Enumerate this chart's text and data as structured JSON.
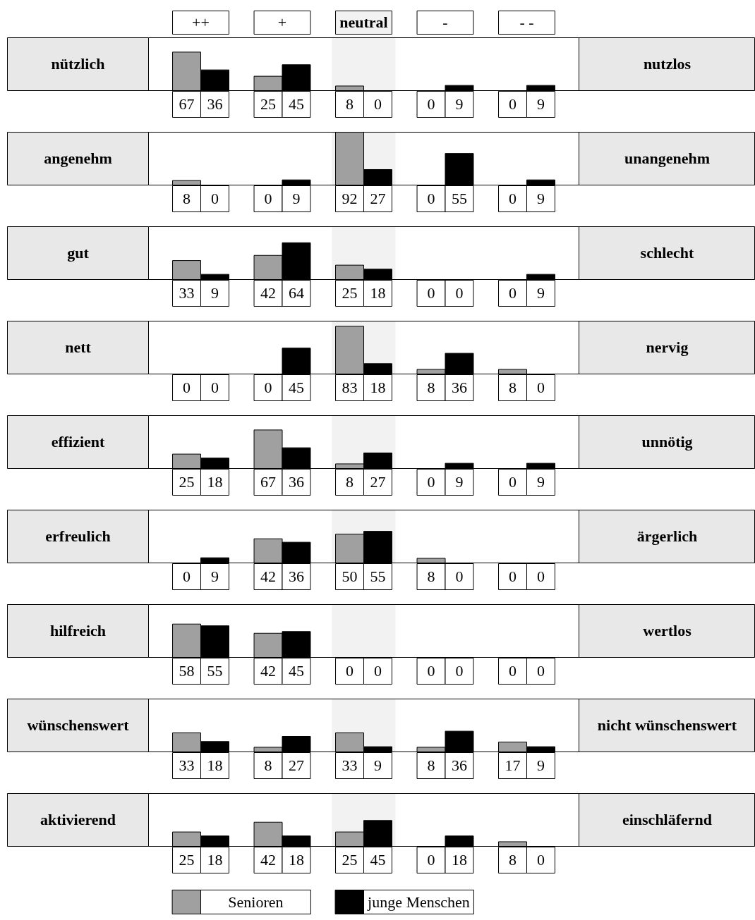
{
  "chart_data": [
    {
      "type": "bar",
      "categories": [
        "++",
        "+",
        "neutral",
        "-",
        "- -"
      ],
      "ylabel": "nützlich",
      "y2label": "nutzlos",
      "tick_labels": "x",
      "data_labels": true,
      "bands": [
        {
          "axis": "x",
          "from": "neutral",
          "to": "neutral",
          "color": "#f2f2f2"
        }
      ],
      "series": [
        {
          "color": "#a0a0a0",
          "values": [
            67,
            25,
            8,
            0,
            0
          ]
        },
        {
          "color": "#000000",
          "values": [
            36,
            45,
            0,
            9,
            9
          ]
        }
      ]
    },
    {
      "type": "bar",
      "categories": [
        "++",
        "+",
        "neutral",
        "-",
        "- -"
      ],
      "ylabel": "angenehm",
      "y2label": "unangenehm",
      "tick_labels": false,
      "data_labels": true,
      "bands": [
        {
          "axis": "x",
          "from": "neutral",
          "to": "neutral",
          "color": "#f2f2f2"
        }
      ],
      "series": [
        {
          "color": "#a0a0a0",
          "values": [
            8,
            0,
            92,
            0,
            0
          ]
        },
        {
          "color": "#000000",
          "values": [
            0,
            9,
            27,
            55,
            9
          ]
        }
      ]
    },
    {
      "type": "bar",
      "categories": [
        "++",
        "+",
        "neutral",
        "-",
        "- -"
      ],
      "ylabel": "gut",
      "y2label": "schlecht",
      "tick_labels": false,
      "data_labels": true,
      "bands": [
        {
          "axis": "x",
          "from": "neutral",
          "to": "neutral",
          "color": "#f2f2f2"
        }
      ],
      "series": [
        {
          "color": "#a0a0a0",
          "values": [
            33,
            42,
            25,
            0,
            0
          ]
        },
        {
          "color": "#000000",
          "values": [
            9,
            64,
            18,
            0,
            9
          ]
        }
      ]
    },
    {
      "type": "bar",
      "categories": [
        "++",
        "+",
        "neutral",
        "-",
        "- -"
      ],
      "ylabel": "nett",
      "y2label": "nervig",
      "tick_labels": false,
      "data_labels": true,
      "bands": [
        {
          "axis": "x",
          "from": "neutral",
          "to": "neutral",
          "color": "#f2f2f2"
        }
      ],
      "series": [
        {
          "color": "#a0a0a0",
          "values": [
            0,
            0,
            83,
            8,
            8
          ]
        },
        {
          "color": "#000000",
          "values": [
            0,
            45,
            18,
            36,
            0
          ]
        }
      ]
    },
    {
      "type": "bar",
      "categories": [
        "++",
        "+",
        "neutral",
        "-",
        "- -"
      ],
      "ylabel": "effizient",
      "y2label": "unnötig",
      "tick_labels": false,
      "data_labels": true,
      "bands": [
        {
          "axis": "x",
          "from": "neutral",
          "to": "neutral",
          "color": "#f2f2f2"
        }
      ],
      "series": [
        {
          "color": "#a0a0a0",
          "values": [
            25,
            67,
            8,
            0,
            0
          ]
        },
        {
          "color": "#000000",
          "values": [
            18,
            36,
            27,
            9,
            9
          ]
        }
      ]
    },
    {
      "type": "bar",
      "categories": [
        "++",
        "+",
        "neutral",
        "-",
        "- -"
      ],
      "ylabel": "erfreulich",
      "y2label": "ärgerlich",
      "tick_labels": false,
      "data_labels": true,
      "bands": [
        {
          "axis": "x",
          "from": "neutral",
          "to": "neutral",
          "color": "#f2f2f2"
        }
      ],
      "series": [
        {
          "color": "#a0a0a0",
          "values": [
            0,
            42,
            50,
            8,
            0
          ]
        },
        {
          "color": "#000000",
          "values": [
            9,
            36,
            55,
            0,
            0
          ]
        }
      ]
    },
    {
      "type": "bar",
      "categories": [
        "++",
        "+",
        "neutral",
        "-",
        "- -"
      ],
      "ylabel": "hilfreich",
      "y2label": "wertlos",
      "tick_labels": false,
      "data_labels": true,
      "bands": [
        {
          "axis": "x",
          "from": "neutral",
          "to": "neutral",
          "color": "#f2f2f2"
        }
      ],
      "series": [
        {
          "color": "#a0a0a0",
          "values": [
            58,
            42,
            0,
            0,
            0
          ]
        },
        {
          "color": "#000000",
          "values": [
            55,
            45,
            0,
            0,
            0
          ]
        }
      ]
    },
    {
      "type": "bar",
      "categories": [
        "++",
        "+",
        "neutral",
        "-",
        "- -"
      ],
      "ylabel": "wünschenswert",
      "y2label": "nicht wünschenswert",
      "tick_labels": false,
      "data_labels": true,
      "bands": [
        {
          "axis": "x",
          "from": "neutral",
          "to": "neutral",
          "color": "#f2f2f2"
        }
      ],
      "series": [
        {
          "color": "#a0a0a0",
          "values": [
            33,
            8,
            33,
            8,
            17
          ]
        },
        {
          "color": "#000000",
          "values": [
            18,
            27,
            9,
            36,
            9
          ]
        }
      ]
    },
    {
      "type": "bar",
      "categories": [
        "++",
        "+",
        "neutral",
        "-",
        "- -"
      ],
      "ylabel": "aktivierend",
      "y2label": "einschläfernd",
      "tick_labels": false,
      "data_labels": true,
      "legend": "bottom",
      "bands": [
        {
          "axis": "x",
          "from": "neutral",
          "to": "neutral",
          "color": "#f2f2f2"
        }
      ],
      "series": [
        {
          "name": "Senioren",
          "color": "#a0a0a0",
          "values": [
            25,
            42,
            25,
            0,
            8
          ]
        },
        {
          "name": "junge Menschen",
          "color": "#000000",
          "values": [
            18,
            18,
            45,
            18,
            0
          ]
        }
      ]
    }
  ]
}
